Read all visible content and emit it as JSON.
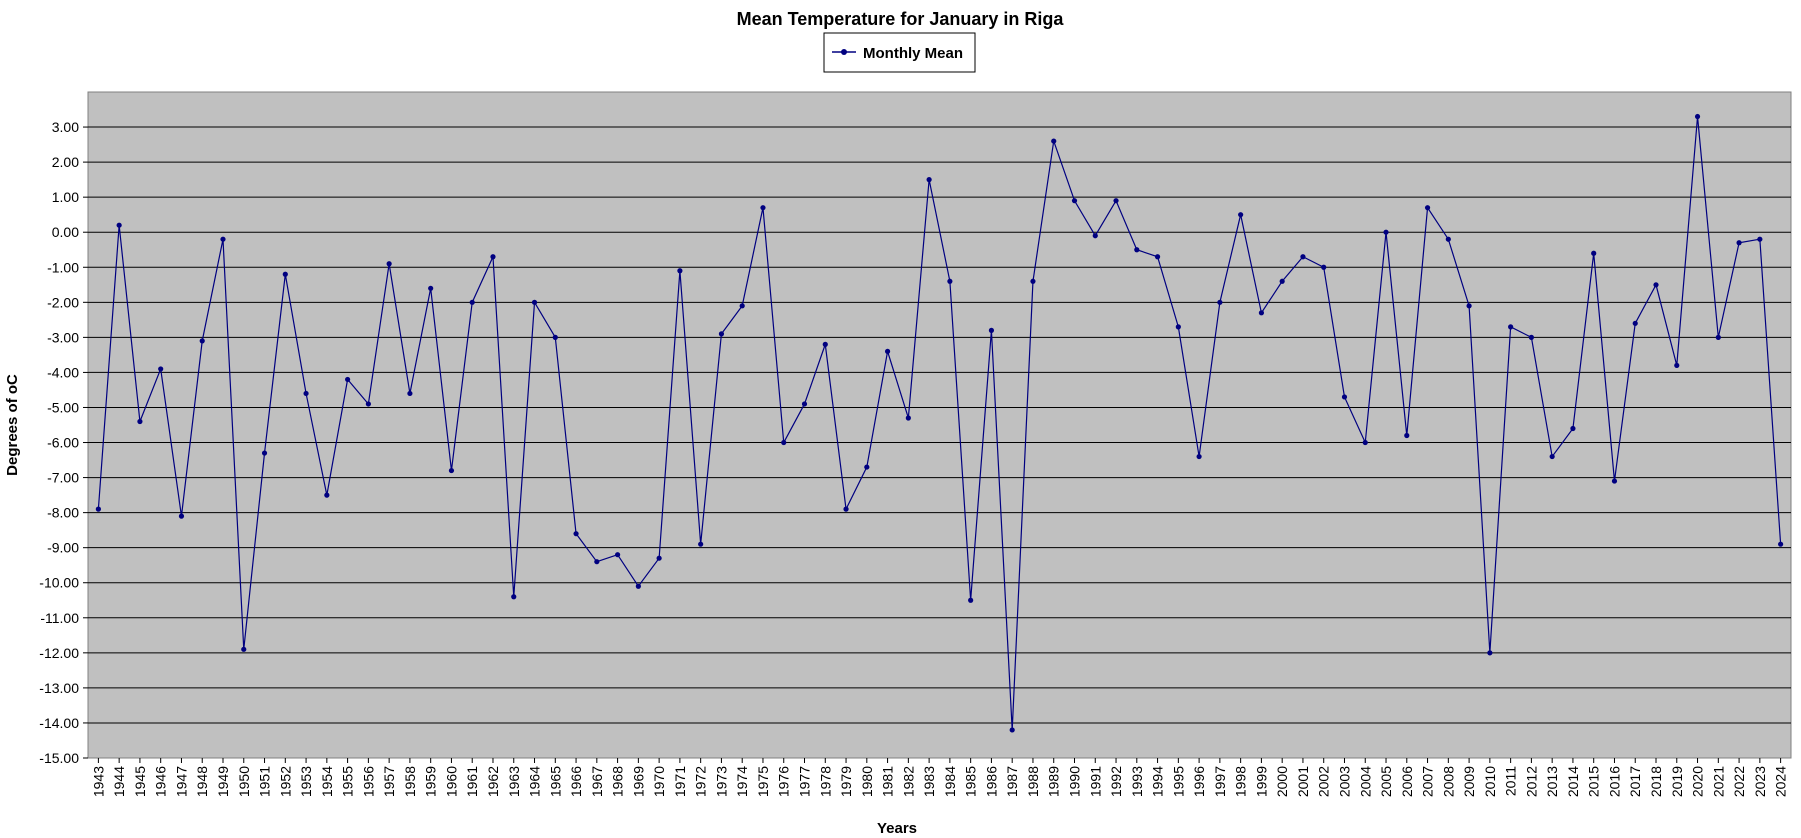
{
  "chart_data": {
    "type": "line",
    "title": "Mean Temperature for January in Riga",
    "xlabel": "Years",
    "ylabel": "Degrees of  oC",
    "ylim": [
      -15,
      4
    ],
    "yticks": [
      "3.00",
      "2.00",
      "1.00",
      "0.00",
      "-1.00",
      "-2.00",
      "-3.00",
      "-4.00",
      "-5.00",
      "-6.00",
      "-7.00",
      "-8.00",
      "-9.00",
      "-10.00",
      "-11.00",
      "-12.00",
      "-13.00",
      "-14.00",
      "-15.00"
    ],
    "grid": "horizontal",
    "legend_position": "top-center",
    "colors": {
      "plot_background": "#c0c0c0",
      "series": "#000080",
      "grid": "#000000"
    },
    "categories": [
      "1943",
      "1944",
      "1945",
      "1946",
      "1947",
      "1948",
      "1949",
      "1950",
      "1951",
      "1952",
      "1953",
      "1954",
      "1955",
      "1956",
      "1957",
      "1958",
      "1959",
      "1960",
      "1961",
      "1962",
      "1963",
      "1964",
      "1965",
      "1966",
      "1967",
      "1968",
      "1969",
      "1970",
      "1971",
      "1972",
      "1973",
      "1974",
      "1975",
      "1976",
      "1977",
      "1978",
      "1979",
      "1980",
      "1981",
      "1982",
      "1983",
      "1984",
      "1985",
      "1986",
      "1987",
      "1988",
      "1989",
      "1990",
      "1991",
      "1992",
      "1993",
      "1994",
      "1995",
      "1996",
      "1997",
      "1998",
      "1999",
      "2000",
      "2001",
      "2002",
      "2003",
      "2004",
      "2005",
      "2006",
      "2007",
      "2008",
      "2009",
      "2010",
      "2011",
      "2012",
      "2013",
      "2014",
      "2015",
      "2016",
      "2017",
      "2018",
      "2019",
      "2020",
      "2021",
      "2022",
      "2023",
      "2024"
    ],
    "series": [
      {
        "name": "Monthly Mean",
        "values": [
          -7.9,
          0.2,
          -5.4,
          -3.9,
          -8.1,
          -3.1,
          -0.2,
          -11.9,
          -6.3,
          -1.2,
          -4.6,
          -7.5,
          -4.2,
          -4.9,
          -0.9,
          -4.6,
          -1.6,
          -6.8,
          -2.0,
          -0.7,
          -10.4,
          -2.0,
          -3.0,
          -8.6,
          -9.4,
          -9.2,
          -10.1,
          -9.3,
          -1.1,
          -8.9,
          -2.9,
          -2.1,
          0.7,
          -6.0,
          -4.9,
          -3.2,
          -7.9,
          -6.7,
          -3.4,
          -5.3,
          1.5,
          -1.4,
          -10.5,
          -2.8,
          -14.2,
          -1.4,
          2.6,
          0.9,
          -0.1,
          0.9,
          -0.5,
          -0.7,
          -2.7,
          -6.4,
          -2.0,
          0.5,
          -2.3,
          -1.4,
          -0.7,
          -1.0,
          -4.7,
          -6.0,
          0.0,
          -5.8,
          0.7,
          -0.2,
          -2.1,
          -12.0,
          -2.7,
          -3.0,
          -6.4,
          -5.6,
          -0.6,
          -7.1,
          -2.6,
          -1.5,
          -3.8,
          3.3,
          -3.0,
          -0.3,
          -0.2,
          -8.9
        ]
      }
    ]
  }
}
